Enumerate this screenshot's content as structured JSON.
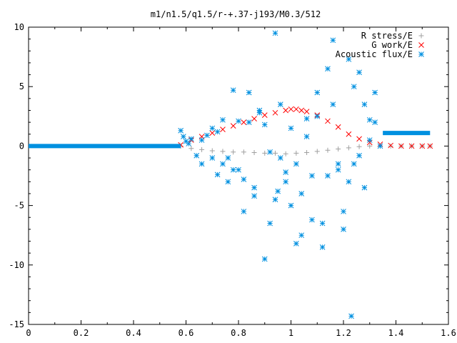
{
  "chart_data": {
    "type": "scatter",
    "title": "m1/n1.5/q1.5/r-+.37-j193/M0.3/512",
    "xlabel": "",
    "ylabel": "",
    "xlim": [
      0,
      1.6
    ],
    "ylim": [
      -15,
      10
    ],
    "x_ticks": [
      0,
      0.2,
      0.4,
      0.6,
      0.8,
      1,
      1.2,
      1.4,
      1.6
    ],
    "x_tick_labels": [
      "0",
      "0.2",
      "0.4",
      "0.6",
      "0.8",
      "1",
      "1.2",
      "1.4",
      "1.6"
    ],
    "y_ticks": [
      -15,
      -10,
      -5,
      0,
      5,
      10
    ],
    "y_tick_labels": [
      "-15",
      "-10",
      "-5",
      "0",
      "5",
      "10"
    ],
    "grid": false,
    "legend_position": "top-right",
    "series": [
      {
        "name": "R stress/E",
        "marker": "plus",
        "color": "#a0a0a0",
        "x": [
          0.58,
          0.62,
          0.66,
          0.7,
          0.74,
          0.78,
          0.82,
          0.86,
          0.9,
          0.94,
          0.98,
          1.02,
          1.06,
          1.1,
          1.14,
          1.18,
          1.22,
          1.26,
          1.3,
          1.34,
          1.38,
          1.42,
          1.46,
          1.5,
          1.53
        ],
        "y": [
          0.0,
          -0.2,
          -0.3,
          -0.4,
          -0.45,
          -0.5,
          -0.5,
          -0.55,
          -0.6,
          -0.6,
          -0.65,
          -0.6,
          -0.55,
          -0.45,
          -0.35,
          -0.25,
          -0.15,
          -0.05,
          0.0,
          0.0,
          0.0,
          0.0,
          0.0,
          0.0,
          0.0
        ]
      },
      {
        "name": "G work/E",
        "marker": "cross",
        "color": "#ff0000",
        "x": [
          0.58,
          0.62,
          0.66,
          0.7,
          0.74,
          0.78,
          0.82,
          0.86,
          0.9,
          0.94,
          0.98,
          1.0,
          1.02,
          1.04,
          1.06,
          1.1,
          1.14,
          1.18,
          1.22,
          1.26,
          1.3,
          1.34,
          1.38,
          1.42,
          1.46,
          1.5,
          1.53
        ],
        "y": [
          0.1,
          0.5,
          0.8,
          1.1,
          1.4,
          1.7,
          2.0,
          2.3,
          2.6,
          2.8,
          3.0,
          3.1,
          3.1,
          3.0,
          2.9,
          2.6,
          2.1,
          1.6,
          1.0,
          0.6,
          0.3,
          0.15,
          0.05,
          0.0,
          0.0,
          0.0,
          0.0
        ]
      },
      {
        "name": "Acoustic flux/E",
        "marker": "star",
        "color": "#0090e0",
        "line_segments": [
          {
            "x": [
              0.0,
              0.58
            ],
            "y": [
              0.0,
              0.0
            ]
          },
          {
            "x": [
              1.35,
              1.53
            ],
            "y": [
              1.1,
              1.1
            ]
          }
        ],
        "x": [
          0.58,
          0.59,
          0.6,
          0.61,
          0.62,
          0.64,
          0.66,
          0.68,
          0.7,
          0.72,
          0.74,
          0.76,
          0.78,
          0.8,
          0.82,
          0.84,
          0.86,
          0.88,
          0.9,
          0.92,
          0.94,
          0.95,
          0.96,
          0.98,
          1.0,
          1.02,
          1.04,
          1.06,
          1.08,
          1.1,
          1.12,
          1.14,
          1.16,
          1.18,
          1.2,
          1.22,
          1.23,
          1.24,
          1.26,
          1.28,
          1.3,
          1.32,
          1.34,
          0.66,
          0.7,
          0.74,
          0.78,
          0.82,
          0.86,
          0.9,
          0.94,
          0.98,
          1.02,
          1.06,
          1.1,
          1.14,
          1.18,
          1.22,
          1.26,
          1.3,
          0.72,
          0.8,
          0.88,
          0.96,
          1.04,
          1.12,
          1.2,
          1.28,
          0.76,
          0.84,
          0.92,
          1.0,
          1.08,
          1.16,
          1.24,
          1.32
        ],
        "y": [
          1.3,
          0.8,
          0.4,
          0.2,
          0.6,
          -0.8,
          -1.5,
          0.9,
          1.5,
          -2.4,
          2.2,
          -3.0,
          4.7,
          2.1,
          -5.5,
          4.5,
          -4.2,
          2.8,
          -9.5,
          -6.5,
          9.5,
          -3.8,
          3.5,
          -2.2,
          -5.0,
          -8.2,
          -7.5,
          2.3,
          -6.2,
          4.5,
          -8.5,
          6.5,
          8.9,
          -2.0,
          -5.5,
          7.3,
          -14.3,
          5.0,
          6.2,
          3.5,
          2.2,
          4.5,
          0.0,
          0.5,
          -1.0,
          -1.5,
          -2.0,
          -2.8,
          -3.5,
          1.8,
          -4.5,
          -3.0,
          -1.5,
          0.8,
          2.5,
          -2.5,
          -1.5,
          -3.0,
          -0.8,
          0.5,
          1.2,
          -2.0,
          3.0,
          -1.0,
          -4.0,
          -6.5,
          -7.0,
          -3.5,
          -1.0,
          2.0,
          -0.5,
          1.5,
          -2.5,
          3.5,
          -1.5,
          2.0
        ]
      }
    ]
  }
}
